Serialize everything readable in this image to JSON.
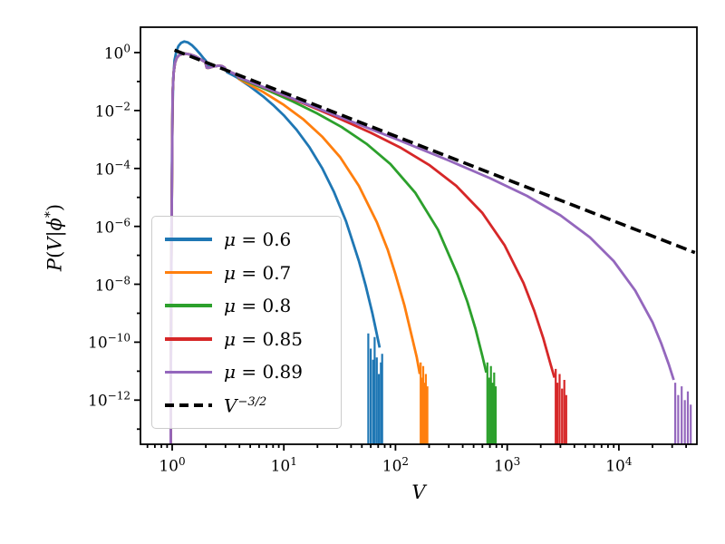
{
  "figure": {
    "background": "#ffffff"
  },
  "chart_data": {
    "type": "line",
    "title": "",
    "xlabel": "V",
    "ylabel_parts": [
      {
        "t": "P",
        "i": true,
        "sup": false
      },
      {
        "t": "(",
        "i": false,
        "sup": false
      },
      {
        "t": "V",
        "i": true,
        "sup": false
      },
      {
        "t": "|",
        "i": false,
        "sup": false
      },
      {
        "t": "ϕ",
        "i": true,
        "sup": false
      },
      {
        "t": "*",
        "i": false,
        "sup": true
      },
      {
        "t": ")",
        "i": false,
        "sup": false
      }
    ],
    "xscale": "log",
    "yscale": "log",
    "xlim": [
      0.52,
      50000
    ],
    "ylim": [
      3e-14,
      7.5
    ],
    "grid": false,
    "legend_position": "center-left",
    "tick_base": "10",
    "x_ticks": [
      {
        "v": 1,
        "exp": "0"
      },
      {
        "v": 10,
        "exp": "1"
      },
      {
        "v": 100,
        "exp": "2"
      },
      {
        "v": 1000,
        "exp": "3"
      },
      {
        "v": 10000,
        "exp": "4"
      }
    ],
    "y_ticks": [
      {
        "v": 1,
        "exp": "0"
      },
      {
        "v": 0.01,
        "exp": "−2"
      },
      {
        "v": 0.0001,
        "exp": "−4"
      },
      {
        "v": 1e-06,
        "exp": "−6"
      },
      {
        "v": 1e-08,
        "exp": "−8"
      },
      {
        "v": 1e-10,
        "exp": "−10"
      },
      {
        "v": 1e-12,
        "exp": "−12"
      }
    ],
    "series": [
      {
        "name": "mu = 0.6",
        "color": "#1f77b4",
        "style": "solid",
        "legend": {
          "var": "μ",
          "rest": " = 0.6",
          "sup": ""
        },
        "points": [
          [
            0.97,
            1e-14
          ],
          [
            0.975,
            3e-11
          ],
          [
            0.98,
            1e-08
          ],
          [
            0.99,
            1e-05
          ],
          [
            1.0,
            0.002
          ],
          [
            1.02,
            0.12
          ],
          [
            1.05,
            0.55
          ],
          [
            1.09,
            1.1
          ],
          [
            1.14,
            1.7
          ],
          [
            1.2,
            2.15
          ],
          [
            1.28,
            2.4
          ],
          [
            1.38,
            2.25
          ],
          [
            1.5,
            1.8
          ],
          [
            1.65,
            1.25
          ],
          [
            1.8,
            0.85
          ],
          [
            1.92,
            0.62
          ],
          [
            2.0,
            0.52
          ],
          [
            2.06,
            0.33
          ],
          [
            2.18,
            0.32
          ],
          [
            2.4,
            0.34
          ],
          [
            2.65,
            0.35
          ],
          [
            2.85,
            0.32
          ],
          [
            3.0,
            0.27
          ],
          [
            3.1,
            0.21
          ],
          [
            3.3,
            0.185
          ],
          [
            3.55,
            0.16
          ],
          [
            3.8,
            0.138
          ],
          [
            4,
            0.12
          ],
          [
            5,
            0.0666
          ],
          [
            6.5,
            0.0309
          ],
          [
            8,
            0.0155
          ],
          [
            10,
            0.0068
          ],
          [
            13,
            0.00215
          ],
          [
            17,
            0.00053
          ],
          [
            22,
            0.000103
          ],
          [
            28,
            1.6e-05
          ],
          [
            36,
            1.5e-06
          ],
          [
            47,
            6.4e-08
          ],
          [
            54,
            9e-09
          ],
          [
            60,
            1.7e-09
          ],
          [
            62,
            1e-09
          ],
          [
            66,
            3.3e-10
          ],
          [
            72,
            6.5e-11
          ]
        ],
        "spikes": [
          [
            57,
            2e-10
          ],
          [
            60,
            6e-11
          ],
          [
            63,
            2.5e-11
          ],
          [
            65,
            1.5e-10
          ],
          [
            68,
            3e-11
          ],
          [
            71,
            8e-12
          ],
          [
            74,
            2e-11
          ],
          [
            76,
            4e-11
          ]
        ]
      },
      {
        "name": "mu = 0.7",
        "color": "#ff7f0e",
        "style": "solid",
        "legend": {
          "var": "μ",
          "rest": " = 0.7",
          "sup": ""
        },
        "points": [
          [
            0.97,
            1e-14
          ],
          [
            0.975,
            2e-11
          ],
          [
            0.98,
            6e-09
          ],
          [
            0.99,
            3e-06
          ],
          [
            1.0,
            0.0005
          ],
          [
            1.01,
            0.04
          ],
          [
            1.03,
            0.2
          ],
          [
            1.06,
            0.44
          ],
          [
            1.1,
            0.66
          ],
          [
            1.16,
            0.82
          ],
          [
            1.24,
            0.9
          ],
          [
            1.33,
            0.91
          ],
          [
            1.45,
            0.86
          ],
          [
            1.6,
            0.75
          ],
          [
            1.75,
            0.62
          ],
          [
            1.9,
            0.51
          ],
          [
            1.98,
            0.47
          ],
          [
            2.04,
            0.3
          ],
          [
            2.15,
            0.3
          ],
          [
            2.35,
            0.33
          ],
          [
            2.6,
            0.35
          ],
          [
            2.8,
            0.34
          ],
          [
            2.95,
            0.3
          ],
          [
            3.07,
            0.235
          ],
          [
            3.3,
            0.215
          ],
          [
            3.55,
            0.19
          ],
          [
            3.8,
            0.165
          ],
          [
            4,
            0.12
          ],
          [
            6.5,
            0.044
          ],
          [
            10,
            0.0156
          ],
          [
            15,
            0.0049
          ],
          [
            22,
            0.00126
          ],
          [
            32,
            0.00024
          ],
          [
            47,
            2.5e-05
          ],
          [
            68,
            1.4e-06
          ],
          [
            85,
            1.6e-07
          ],
          [
            100,
            2.2e-08
          ],
          [
            120,
            1.9e-09
          ],
          [
            140,
            1.6e-10
          ],
          [
            155,
            3e-11
          ],
          [
            165,
            8e-12
          ]
        ],
        "spikes": [
          [
            168,
            2e-11
          ],
          [
            172,
            6e-12
          ],
          [
            177,
            1.5e-11
          ],
          [
            182,
            4e-12
          ],
          [
            187,
            8e-12
          ],
          [
            193,
            3e-12
          ]
        ]
      },
      {
        "name": "mu = 0.8",
        "color": "#2ca02c",
        "style": "solid",
        "legend": {
          "var": "μ",
          "rest": " = 0.8",
          "sup": ""
        },
        "points": [
          [
            0.97,
            1e-14
          ],
          [
            0.975,
            2e-11
          ],
          [
            0.98,
            6e-09
          ],
          [
            0.99,
            3e-06
          ],
          [
            1.0,
            0.0005
          ],
          [
            1.01,
            0.04
          ],
          [
            1.03,
            0.2
          ],
          [
            1.06,
            0.44
          ],
          [
            1.1,
            0.66
          ],
          [
            1.16,
            0.82
          ],
          [
            1.24,
            0.9
          ],
          [
            1.33,
            0.91
          ],
          [
            1.45,
            0.86
          ],
          [
            1.6,
            0.75
          ],
          [
            1.75,
            0.62
          ],
          [
            1.9,
            0.51
          ],
          [
            1.98,
            0.47
          ],
          [
            2.04,
            0.3
          ],
          [
            2.15,
            0.3
          ],
          [
            2.35,
            0.33
          ],
          [
            2.6,
            0.35
          ],
          [
            2.8,
            0.34
          ],
          [
            2.95,
            0.3
          ],
          [
            3.07,
            0.235
          ],
          [
            3.3,
            0.215
          ],
          [
            3.55,
            0.19
          ],
          [
            3.8,
            0.165
          ],
          [
            4,
            0.13
          ],
          [
            7,
            0.052
          ],
          [
            12,
            0.0205
          ],
          [
            20,
            0.0078
          ],
          [
            33,
            0.00266
          ],
          [
            55,
            0.00071
          ],
          [
            90,
            0.000142
          ],
          [
            150,
            1.47e-05
          ],
          [
            240,
            7.7e-07
          ],
          [
            360,
            2.1e-08
          ],
          [
            440,
            2.5e-09
          ],
          [
            520,
            2.9e-10
          ],
          [
            600,
            3.3e-11
          ],
          [
            650,
            9e-12
          ]
        ],
        "spikes": [
          [
            665,
            2e-11
          ],
          [
            690,
            6e-12
          ],
          [
            715,
            1.5e-11
          ],
          [
            740,
            4e-12
          ],
          [
            765,
            9e-12
          ],
          [
            790,
            3e-12
          ]
        ]
      },
      {
        "name": "mu = 0.85",
        "color": "#d62728",
        "style": "solid",
        "legend": {
          "var": "μ",
          "rest": " = 0.85",
          "sup": ""
        },
        "points": [
          [
            0.97,
            1e-14
          ],
          [
            0.975,
            2e-11
          ],
          [
            0.98,
            6e-09
          ],
          [
            0.99,
            3e-06
          ],
          [
            1.0,
            0.0005
          ],
          [
            1.01,
            0.04
          ],
          [
            1.03,
            0.2
          ],
          [
            1.06,
            0.44
          ],
          [
            1.1,
            0.66
          ],
          [
            1.16,
            0.82
          ],
          [
            1.24,
            0.9
          ],
          [
            1.33,
            0.91
          ],
          [
            1.45,
            0.86
          ],
          [
            1.6,
            0.75
          ],
          [
            1.75,
            0.62
          ],
          [
            1.9,
            0.51
          ],
          [
            1.98,
            0.47
          ],
          [
            2.04,
            0.3
          ],
          [
            2.15,
            0.3
          ],
          [
            2.35,
            0.33
          ],
          [
            2.6,
            0.35
          ],
          [
            2.8,
            0.34
          ],
          [
            2.95,
            0.3
          ],
          [
            3.07,
            0.235
          ],
          [
            3.3,
            0.215
          ],
          [
            3.55,
            0.19
          ],
          [
            3.8,
            0.165
          ],
          [
            4,
            0.135
          ],
          [
            8,
            0.0466
          ],
          [
            16,
            0.0158
          ],
          [
            30,
            0.0057
          ],
          [
            60,
            0.00171
          ],
          [
            110,
            0.00053
          ],
          [
            200,
            0.000132
          ],
          [
            350,
            2.5e-05
          ],
          [
            600,
            2.9e-06
          ],
          [
            950,
            2.2e-07
          ],
          [
            1400,
            1.1e-08
          ],
          [
            1750,
            1.2e-09
          ],
          [
            2100,
            1.4e-10
          ],
          [
            2450,
            1.7e-11
          ],
          [
            2650,
            6e-12
          ]
        ],
        "spikes": [
          [
            2720,
            1.2e-11
          ],
          [
            2820,
            4e-12
          ],
          [
            2950,
            8e-12
          ],
          [
            3100,
            2.5e-12
          ],
          [
            3250,
            5e-12
          ],
          [
            3380,
            1.5e-12
          ]
        ]
      },
      {
        "name": "mu = 0.89",
        "color": "#9467bd",
        "style": "solid",
        "legend": {
          "var": "μ",
          "rest": " = 0.89",
          "sup": ""
        },
        "points": [
          [
            0.97,
            1e-14
          ],
          [
            0.975,
            2e-11
          ],
          [
            0.98,
            6e-09
          ],
          [
            0.99,
            3e-06
          ],
          [
            1.0,
            0.0005
          ],
          [
            1.01,
            0.04
          ],
          [
            1.03,
            0.2
          ],
          [
            1.06,
            0.44
          ],
          [
            1.1,
            0.66
          ],
          [
            1.16,
            0.82
          ],
          [
            1.24,
            0.9
          ],
          [
            1.33,
            0.91
          ],
          [
            1.45,
            0.86
          ],
          [
            1.6,
            0.75
          ],
          [
            1.75,
            0.62
          ],
          [
            1.9,
            0.51
          ],
          [
            1.98,
            0.47
          ],
          [
            2.04,
            0.3
          ],
          [
            2.15,
            0.3
          ],
          [
            2.35,
            0.33
          ],
          [
            2.6,
            0.35
          ],
          [
            2.8,
            0.34
          ],
          [
            2.95,
            0.3
          ],
          [
            3.07,
            0.235
          ],
          [
            3.3,
            0.215
          ],
          [
            3.55,
            0.19
          ],
          [
            3.8,
            0.165
          ],
          [
            4,
            0.135
          ],
          [
            10,
            0.0341
          ],
          [
            30,
            0.0065
          ],
          [
            100,
            0.00105
          ],
          [
            300,
            0.000188
          ],
          [
            700,
            4.6e-05
          ],
          [
            1500,
            1.13e-05
          ],
          [
            3000,
            2.4e-06
          ],
          [
            5500,
            4.2e-07
          ],
          [
            9000,
            6.3e-08
          ],
          [
            14000,
            6.1e-09
          ],
          [
            20000,
            4.9e-10
          ],
          [
            24000,
            9e-11
          ],
          [
            28000,
            1.7e-11
          ],
          [
            31000,
            5e-12
          ]
        ],
        "spikes": [
          [
            32000,
            4e-12
          ],
          [
            34000,
            1.5e-12
          ],
          [
            36500,
            3e-12
          ],
          [
            39000,
            1e-12
          ],
          [
            41500,
            2e-12
          ],
          [
            44000,
            7e-13
          ]
        ]
      },
      {
        "name": "V^(-3/2)",
        "color": "#000000",
        "style": "dashed",
        "legend": {
          "var": "V",
          "rest": "",
          "sup": "−3/2"
        },
        "points": [
          [
            1.05,
            1.21
          ],
          [
            48000,
            1.24e-07
          ]
        ],
        "spikes": []
      }
    ]
  }
}
